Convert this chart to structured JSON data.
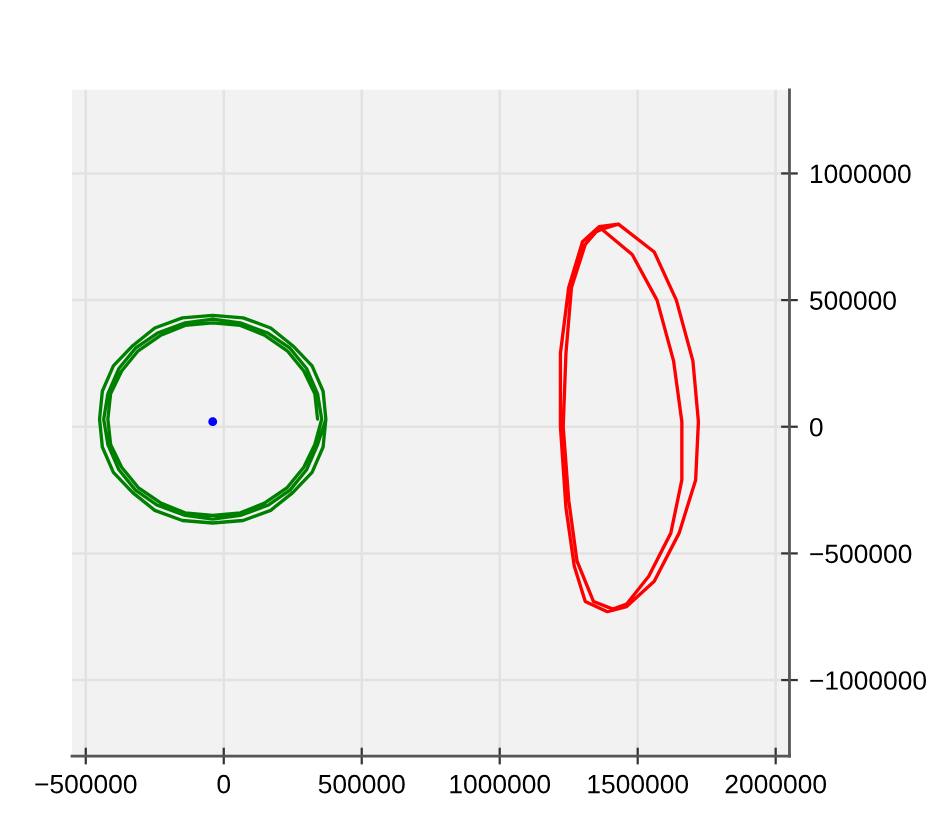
{
  "chart_data": {
    "type": "line",
    "xlim": [
      -550000,
      2050000
    ],
    "ylim": [
      -1300000,
      1330000
    ],
    "xticks": [
      {
        "value": -500000,
        "label": "−500000"
      },
      0,
      500000,
      1000000,
      1500000,
      2000000
    ],
    "yticks": [
      {
        "value": -1000000,
        "label": "−1000000"
      },
      {
        "value": -500000,
        "label": "−500000"
      },
      0,
      500000,
      1000000
    ],
    "grid": true,
    "series": [
      {
        "color": "#008000",
        "x": [
          340000,
          330000,
          290000,
          230000,
          150000,
          60000,
          -40000,
          -140000,
          -230000,
          -310000,
          -370000,
          -410000,
          -420000,
          -410000,
          -370000,
          -310000,
          -230000,
          -140000,
          -40000,
          60000,
          150000,
          230000,
          290000,
          330000,
          355000,
          340000,
          300000,
          240000,
          160000,
          60000,
          -40000,
          -140000,
          -240000,
          -320000,
          -380000,
          -420000,
          -435000,
          -420000,
          -380000,
          -320000,
          -240000,
          -140000,
          -40000,
          60000,
          160000,
          240000,
          300000,
          340000,
          370000,
          360000,
          320000,
          250000,
          170000,
          70000,
          -40000,
          -150000,
          -250000,
          -330000,
          -400000,
          -440000,
          -450000,
          -440000,
          -400000,
          -330000,
          -250000,
          -150000,
          -40000,
          70000,
          170000,
          250000,
          320000,
          360000,
          370000
        ],
        "values": [
          30000,
          130000,
          220000,
          300000,
          360000,
          400000,
          410000,
          400000,
          360000,
          300000,
          220000,
          130000,
          30000,
          -70000,
          -160000,
          -240000,
          -300000,
          -340000,
          -350000,
          -340000,
          -300000,
          -240000,
          -160000,
          -70000,
          30000,
          130000,
          230000,
          310000,
          370000,
          410000,
          425000,
          410000,
          370000,
          310000,
          230000,
          130000,
          30000,
          -70000,
          -170000,
          -250000,
          -310000,
          -350000,
          -365000,
          -350000,
          -310000,
          -250000,
          -170000,
          -70000,
          30000,
          140000,
          240000,
          320000,
          390000,
          430000,
          440000,
          430000,
          390000,
          320000,
          240000,
          140000,
          30000,
          -80000,
          -180000,
          -260000,
          -330000,
          -370000,
          -380000,
          -370000,
          -330000,
          -260000,
          -180000,
          -80000,
          30000
        ]
      },
      {
        "color": "#ff0000",
        "x": [
          1430000,
          1560000,
          1640000,
          1700000,
          1720000,
          1710000,
          1650000,
          1560000,
          1460000,
          1390000,
          1310000,
          1270000,
          1240000,
          1220000,
          1220000,
          1250000,
          1300000,
          1360000,
          1430000,
          1370000,
          1480000,
          1570000,
          1630000,
          1660000,
          1660000,
          1620000,
          1540000,
          1460000,
          1410000,
          1340000,
          1280000,
          1250000,
          1230000,
          1240000,
          1260000,
          1310000,
          1350000,
          1370000
        ],
        "values": [
          800000,
          690000,
          500000,
          260000,
          20000,
          -210000,
          -420000,
          -610000,
          -710000,
          -730000,
          -690000,
          -550000,
          -320000,
          0,
          290000,
          550000,
          730000,
          790000,
          800000,
          780000,
          680000,
          500000,
          260000,
          20000,
          -210000,
          -420000,
          -590000,
          -700000,
          -720000,
          -690000,
          -530000,
          -290000,
          0,
          290000,
          550000,
          720000,
          770000,
          780000
        ]
      },
      {
        "type": "scatter",
        "color": "#0000ff",
        "marker": "circle",
        "x": [
          -40000
        ],
        "values": [
          20000
        ]
      }
    ]
  }
}
